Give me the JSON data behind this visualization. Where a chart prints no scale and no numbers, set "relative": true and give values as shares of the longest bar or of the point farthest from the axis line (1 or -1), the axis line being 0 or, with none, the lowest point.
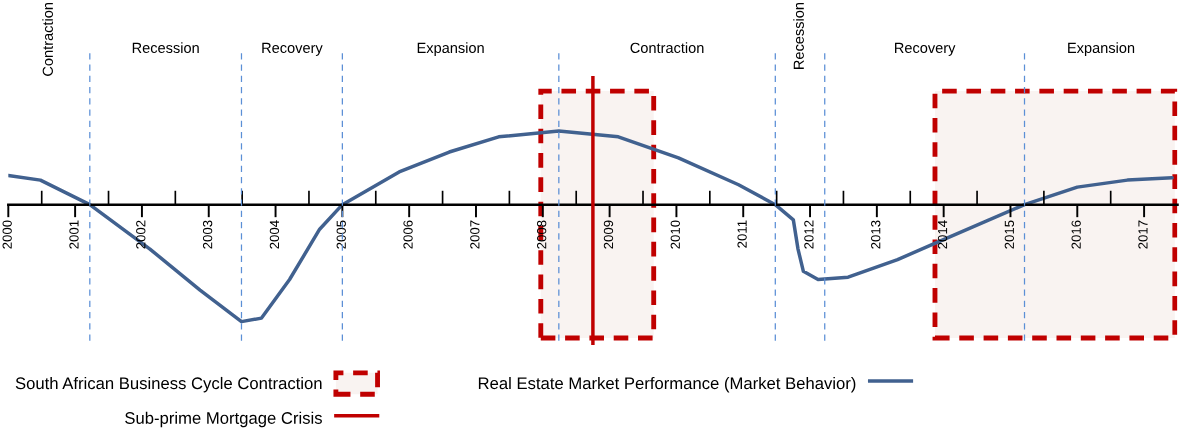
{
  "chart_data": {
    "type": "line",
    "relative": true,
    "legend": "bottom",
    "x": [
      2000.0,
      2000.48,
      2001.22,
      2002.12,
      2002.87,
      2003.49,
      2003.79,
      2004.21,
      2004.66,
      2005.0,
      2005.85,
      2006.6,
      2007.34,
      2008.24,
      2009.13,
      2010.03,
      2010.93,
      2011.48,
      2011.75,
      2011.82,
      2011.9,
      2012.12,
      2012.57,
      2013.31,
      2013.91,
      2015.21,
      2016.0,
      2016.75,
      2017.42
    ],
    "series": [
      {
        "name": "Real Estate Market Performance (Market Behavior)",
        "color": "#41618f",
        "values": [
          0.25,
          0.21,
          0,
          -0.38,
          -0.73,
          -1,
          -0.97,
          -0.64,
          -0.21,
          0,
          0.28,
          0.45,
          0.58,
          0.63,
          0.58,
          0.4,
          0.17,
          0,
          -0.13,
          -0.38,
          -0.57,
          -0.64,
          -0.62,
          -0.47,
          -0.32,
          0,
          0.15,
          0.21,
          0.23
        ]
      }
    ],
    "xlim": [
      2000,
      2017.5
    ],
    "xticks": [
      2000,
      {
        "value": 2000.5,
        "label": null
      },
      2001,
      {
        "value": 2001.5,
        "label": null
      },
      2002,
      {
        "value": 2002.5,
        "label": null
      },
      2003,
      {
        "value": 2003.5,
        "label": null
      },
      2004,
      {
        "value": 2004.5,
        "label": null
      },
      2005,
      {
        "value": 2005.5,
        "label": null
      },
      2006,
      {
        "value": 2006.5,
        "label": null
      },
      2007,
      {
        "value": 2007.5,
        "label": null
      },
      2008,
      {
        "value": 2008.5,
        "label": null
      },
      2009,
      {
        "value": 2009.5,
        "label": null
      },
      2010,
      {
        "value": 2010.5,
        "label": null
      },
      2011,
      {
        "value": 2011.5,
        "label": null
      },
      2012,
      {
        "value": 2012.5,
        "label": null
      },
      2013,
      {
        "value": 2013.5,
        "label": null
      },
      2014,
      {
        "value": 2014.5,
        "label": null
      },
      2015,
      {
        "value": 2015.5,
        "label": null
      },
      2016,
      {
        "value": 2016.5,
        "label": null
      },
      2017
    ],
    "annotations": [
      "Contraction",
      "Recession",
      "Recovery",
      "Expansion",
      "Contraction",
      "Recession",
      "Recovery",
      "Expansion"
    ],
    "ref_lines": [
      {
        "axis": "x",
        "value": 2001.22,
        "color": "#5b8fd6",
        "line_style": "dashed"
      },
      {
        "axis": "x",
        "value": 2003.49,
        "color": "#5b8fd6",
        "line_style": "dashed"
      },
      {
        "axis": "x",
        "value": 2005.0,
        "color": "#5b8fd6",
        "line_style": "dashed"
      },
      {
        "axis": "x",
        "value": 2008.24,
        "color": "#5b8fd6",
        "line_style": "dashed"
      },
      {
        "axis": "x",
        "value": 2011.48,
        "color": "#5b8fd6",
        "line_style": "dashed"
      },
      {
        "axis": "x",
        "value": 2012.22,
        "color": "#5b8fd6",
        "line_style": "dashed"
      },
      {
        "axis": "x",
        "value": 2015.21,
        "color": "#5b8fd6",
        "line_style": "dashed"
      },
      {
        "axis": "x",
        "value": 2008.75,
        "color": "#c00000",
        "label": "Sub-prime Mortgage Crisis"
      }
    ],
    "bands": [
      {
        "axis": "x",
        "from": 2007.97,
        "to": 2009.66,
        "color": "#c00000",
        "label": "South African Business Cycle Contraction"
      },
      {
        "axis": "x",
        "from": 2013.87,
        "to": 2017.46,
        "color": "#c00000"
      }
    ]
  }
}
